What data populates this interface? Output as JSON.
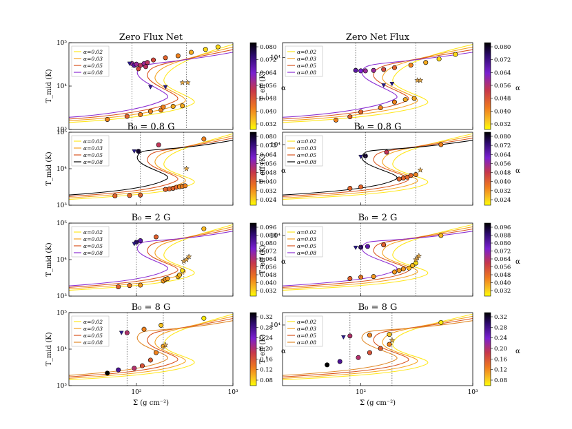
{
  "figure": {
    "xlabel": "Σ (g cm⁻²)",
    "ylabel_left": "T_mid (K)",
    "ylabel_right": "T_eff (K)",
    "colorbar_label": "α"
  },
  "chart_data": [
    {
      "type": "line",
      "panel": "left-1",
      "title": "Zero Flux Net",
      "xscale": "log",
      "yscale": "log",
      "xlim": [
        20,
        1000
      ],
      "ylim": [
        1000,
        100000
      ],
      "legend": [
        "α=0.02",
        "α=0.03",
        "α=0.05",
        "α=0.08"
      ],
      "legend_position": "top-left",
      "colorbar": {
        "ticks": [
          "0.080",
          "0.072",
          "0.064",
          "0.056",
          "0.048",
          "0.040",
          "0.032"
        ],
        "range": [
          0.026,
          0.086
        ]
      },
      "vlines": [
        90,
        330
      ],
      "points": [
        [
          90,
          33000,
          0.06
        ],
        [
          95,
          30000,
          0.07
        ],
        [
          100,
          32000,
          0.06
        ],
        [
          110,
          30000,
          0.055
        ],
        [
          120,
          33000,
          0.06
        ],
        [
          130,
          35000,
          0.055
        ],
        [
          150,
          40000,
          0.05
        ],
        [
          200,
          45000,
          0.045
        ],
        [
          270,
          50000,
          0.04
        ],
        [
          370,
          60000,
          0.035
        ],
        [
          520,
          70000,
          0.03
        ],
        [
          700,
          80000,
          0.03
        ],
        [
          105,
          25000,
          0.05
        ],
        [
          125,
          28000,
          0.055
        ],
        [
          50,
          1700,
          0.04
        ],
        [
          80,
          2000,
          0.045
        ],
        [
          110,
          2200,
          0.04
        ],
        [
          140,
          2600,
          0.04
        ],
        [
          180,
          2800,
          0.04
        ],
        [
          190,
          3300,
          0.04
        ],
        [
          240,
          3400,
          0.035
        ],
        [
          300,
          3500,
          0.035
        ]
      ],
      "markers_triangle": [
        [
          85,
          33000
        ],
        [
          140,
          9500
        ],
        [
          200,
          9500
        ]
      ],
      "markers_star": [
        [
          300,
          12000
        ],
        [
          340,
          12000
        ]
      ]
    },
    {
      "type": "line",
      "panel": "right-1",
      "title": "Zero Net Flux",
      "xscale": "log",
      "yscale": "log",
      "xlim": [
        20,
        1000
      ],
      "ylim": [
        1000,
        16000
      ],
      "legend": [
        "α=0.02",
        "α=0.03",
        "α=0.05",
        "α=0.08"
      ],
      "legend_position": "top-left",
      "colorbar": {
        "ticks": [
          "0.080",
          "0.072",
          "0.064",
          "0.056",
          "0.048",
          "0.040",
          "0.032"
        ],
        "range": [
          0.026,
          0.086
        ]
      },
      "vlines": [
        90,
        310
      ],
      "points": [
        [
          90,
          6600,
          0.07
        ],
        [
          100,
          6500,
          0.065
        ],
        [
          110,
          6500,
          0.06
        ],
        [
          130,
          6600,
          0.06
        ],
        [
          160,
          6800,
          0.05
        ],
        [
          200,
          7200,
          0.045
        ],
        [
          280,
          7800,
          0.04
        ],
        [
          380,
          8500,
          0.035
        ],
        [
          500,
          9500,
          0.03
        ],
        [
          700,
          11000,
          0.03
        ],
        [
          60,
          1350,
          0.04
        ],
        [
          80,
          1500,
          0.045
        ],
        [
          100,
          1750,
          0.045
        ],
        [
          150,
          2000,
          0.04
        ],
        [
          200,
          2400,
          0.04
        ],
        [
          250,
          2600,
          0.035
        ],
        [
          300,
          2700,
          0.035
        ]
      ],
      "markers_triangle": [
        [
          160,
          4100
        ],
        [
          190,
          4300
        ]
      ],
      "markers_star": [
        [
          320,
          4800
        ],
        [
          340,
          4800
        ]
      ]
    },
    {
      "type": "line",
      "panel": "left-2",
      "title": "B₀ = 0.8 G",
      "xscale": "log",
      "yscale": "log",
      "xlim": [
        20,
        1000
      ],
      "ylim": [
        1000,
        100000
      ],
      "legend": [
        "α=0.02",
        "α=0.03",
        "α=0.05",
        "α=0.08"
      ],
      "legend_position": "top-left",
      "colorbar": {
        "ticks": [
          "0.080",
          "0.072",
          "0.064",
          "0.056",
          "0.048",
          "0.040",
          "0.032",
          "0.024"
        ],
        "range": [
          0.02,
          0.084
        ]
      },
      "vlines": [
        110,
        310
      ],
      "points": [
        [
          105,
          30000,
          0.08
        ],
        [
          170,
          45000,
          0.05
        ],
        [
          500,
          65000,
          0.035
        ],
        [
          60,
          1800,
          0.04
        ],
        [
          85,
          1850,
          0.04
        ],
        [
          110,
          1900,
          0.04
        ],
        [
          200,
          2700,
          0.04
        ],
        [
          220,
          2800,
          0.04
        ],
        [
          240,
          2900,
          0.04
        ],
        [
          260,
          3100,
          0.04
        ],
        [
          280,
          3200,
          0.035
        ],
        [
          300,
          3300,
          0.035
        ],
        [
          320,
          3400,
          0.035
        ]
      ],
      "markers_triangle": [
        [
          95,
          30000
        ]
      ],
      "markers_star": [
        [
          330,
          10000
        ]
      ]
    },
    {
      "type": "line",
      "panel": "right-2",
      "title": "B₀ = 0.8 G",
      "xscale": "log",
      "yscale": "log",
      "xlim": [
        20,
        1000
      ],
      "ylim": [
        1000,
        16000
      ],
      "legend": [
        "α=0.02",
        "α=0.03",
        "α=0.05",
        "α=0.08"
      ],
      "legend_position": "top-left",
      "colorbar": {
        "ticks": [
          "0.080",
          "0.072",
          "0.064",
          "0.056",
          "0.048",
          "0.040",
          "0.032",
          "0.024"
        ],
        "range": [
          0.02,
          0.084
        ]
      },
      "vlines": [
        110,
        310
      ],
      "points": [
        [
          110,
          6500,
          0.08
        ],
        [
          170,
          7500,
          0.05
        ],
        [
          520,
          10000,
          0.035
        ],
        [
          80,
          1900,
          0.04
        ],
        [
          100,
          2000,
          0.04
        ],
        [
          220,
          2700,
          0.04
        ],
        [
          240,
          2800,
          0.04
        ],
        [
          260,
          2900,
          0.04
        ],
        [
          280,
          3100,
          0.04
        ],
        [
          310,
          3200,
          0.035
        ]
      ],
      "markers_triangle": [
        [
          100,
          6300
        ]
      ],
      "markers_star": [
        [
          340,
          3800
        ]
      ]
    },
    {
      "type": "line",
      "panel": "left-3",
      "title": "B₀ = 2 G",
      "xscale": "log",
      "yscale": "log",
      "xlim": [
        20,
        1000
      ],
      "ylim": [
        1000,
        100000
      ],
      "legend": [
        "α=0.02",
        "α=0.03",
        "α=0.05",
        "α=0.08"
      ],
      "legend_position": "top-left",
      "colorbar": {
        "ticks": [
          "0.096",
          "0.088",
          "0.080",
          "0.072",
          "0.064",
          "0.056",
          "0.048",
          "0.040",
          "0.032"
        ],
        "range": [
          0.026,
          0.1
        ]
      },
      "vlines": [
        100,
        310
      ],
      "points": [
        [
          100,
          30000,
          0.09
        ],
        [
          110,
          33000,
          0.08
        ],
        [
          160,
          42000,
          0.05
        ],
        [
          500,
          70000,
          0.035
        ],
        [
          65,
          1800,
          0.05
        ],
        [
          85,
          1950,
          0.045
        ],
        [
          110,
          2000,
          0.04
        ],
        [
          190,
          2600,
          0.04
        ],
        [
          200,
          2900,
          0.04
        ],
        [
          210,
          3000,
          0.04
        ],
        [
          270,
          3400,
          0.035
        ],
        [
          280,
          3800,
          0.035
        ],
        [
          300,
          5000,
          0.03
        ]
      ],
      "markers_triangle": [
        [
          95,
          27000
        ]
      ],
      "markers_star": [
        [
          310,
          9000
        ],
        [
          330,
          10000
        ],
        [
          350,
          12000
        ]
      ]
    },
    {
      "type": "line",
      "panel": "right-3",
      "title": "B₀ = 2 G",
      "xscale": "log",
      "yscale": "log",
      "xlim": [
        20,
        1000
      ],
      "ylim": [
        1000,
        16000
      ],
      "legend": [
        "α=0.02",
        "α=0.03",
        "α=0.05",
        "α=0.08"
      ],
      "legend_position": "top-left",
      "colorbar": {
        "ticks": [
          "0.096",
          "0.088",
          "0.080",
          "0.072",
          "0.064",
          "0.056",
          "0.048",
          "0.040",
          "0.032"
        ],
        "range": [
          0.026,
          0.1
        ]
      },
      "vlines": [
        100,
        310
      ],
      "points": [
        [
          100,
          6400,
          0.09
        ],
        [
          115,
          6600,
          0.08
        ],
        [
          160,
          7000,
          0.05
        ],
        [
          520,
          10000,
          0.035
        ],
        [
          80,
          1950,
          0.05
        ],
        [
          100,
          2050,
          0.045
        ],
        [
          130,
          2100,
          0.04
        ],
        [
          200,
          2500,
          0.04
        ],
        [
          220,
          2650,
          0.04
        ],
        [
          240,
          2800,
          0.04
        ],
        [
          270,
          2900,
          0.035
        ],
        [
          290,
          3200,
          0.035
        ],
        [
          310,
          3500,
          0.03
        ]
      ],
      "markers_triangle": [
        [
          90,
          6300
        ]
      ],
      "markers_star": [
        [
          310,
          4000
        ],
        [
          320,
          4300
        ],
        [
          330,
          4600
        ]
      ]
    },
    {
      "type": "line",
      "panel": "left-4",
      "title": "B₀ = 8 G",
      "xscale": "log",
      "yscale": "log",
      "xlim": [
        20,
        1000
      ],
      "ylim": [
        1000,
        100000
      ],
      "legend": [
        "α=0.02",
        "α=0.03",
        "α=0.05",
        "α=0.08"
      ],
      "legend_position": "top-left",
      "colorbar": {
        "ticks": [
          "0.32",
          "0.28",
          "0.24",
          "0.20",
          "0.16",
          "0.12",
          "0.08"
        ],
        "range": [
          0.05,
          0.35
        ]
      },
      "vlines": [
        80,
        190
      ],
      "points": [
        [
          80,
          28000,
          0.2
        ],
        [
          120,
          35000,
          0.12
        ],
        [
          180,
          45000,
          0.08
        ],
        [
          500,
          70000,
          0.06
        ],
        [
          50,
          2200,
          0.35
        ],
        [
          65,
          2700,
          0.28
        ],
        [
          95,
          3000,
          0.2
        ],
        [
          115,
          3500,
          0.16
        ],
        [
          140,
          5000,
          0.15
        ],
        [
          160,
          8000,
          0.12
        ],
        [
          190,
          12000,
          0.1
        ]
      ],
      "markers_triangle": [
        [
          70,
          28000
        ]
      ],
      "markers_star": [
        [
          200,
          13000
        ]
      ]
    },
    {
      "type": "line",
      "panel": "right-4",
      "title": "B₀ = 8 G",
      "xscale": "log",
      "yscale": "log",
      "xlim": [
        20,
        1000
      ],
      "ylim": [
        1000,
        16000
      ],
      "legend": [
        "α=0.02",
        "α=0.03",
        "α=0.05",
        "α=0.08"
      ],
      "legend_position": "top-left",
      "colorbar": {
        "ticks": [
          "0.32",
          "0.28",
          "0.24",
          "0.20",
          "0.16",
          "0.12",
          "0.08"
        ],
        "range": [
          0.05,
          0.35
        ]
      },
      "vlines": [
        80,
        190
      ],
      "points": [
        [
          80,
          6600,
          0.2
        ],
        [
          120,
          6800,
          0.12
        ],
        [
          180,
          7000,
          0.08
        ],
        [
          520,
          11000,
          0.06
        ],
        [
          50,
          2200,
          0.35
        ],
        [
          65,
          2500,
          0.28
        ],
        [
          95,
          2900,
          0.2
        ],
        [
          120,
          3500,
          0.16
        ],
        [
          150,
          4100,
          0.15
        ],
        [
          180,
          4800,
          0.12
        ]
      ],
      "markers_triangle": [
        [
          70,
          6300
        ]
      ],
      "markers_star": [
        [
          190,
          5600
        ]
      ]
    }
  ]
}
